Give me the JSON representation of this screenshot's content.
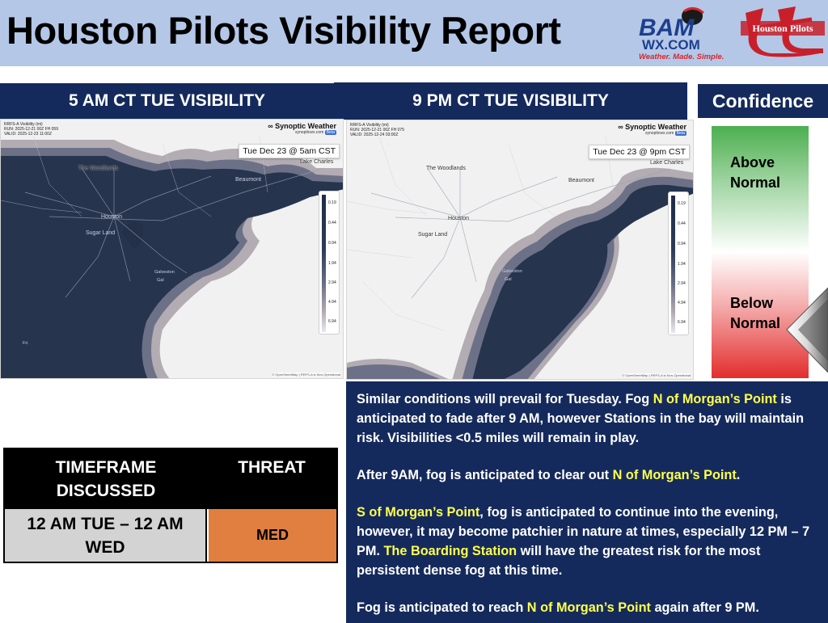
{
  "header": {
    "title": "Houston Pilots Visibility Report",
    "logo_baron": {
      "line1": "BAM",
      "line2": "WX.COM",
      "tagline": "Weather. Made. Simple."
    },
    "logo_hp": {
      "text": "Houston Pilots"
    }
  },
  "maps": {
    "left": {
      "heading": "5 AM CT TUE VISIBILITY",
      "meta": [
        "RRFS-A Visibility (mi)",
        "RUN: 2025-12-21 00Z FH 059",
        "VALID: 2025-12-23 11:00Z"
      ],
      "brand": "∞ Synoptic Weather",
      "brand_url": "synopticwx.com",
      "brand_badge": "Beta",
      "stamp": "Tue Dec 23 @ 5am CST",
      "places": [
        "The Woodlands",
        "Houston",
        "Sugar Land",
        "Beaumont",
        "Lake Charles",
        "Galveston",
        "Gal",
        "Fri"
      ],
      "attribution": "© OpenStreetMap | RRFS-A is Non-Operational"
    },
    "right": {
      "heading": "9 PM CT TUE VISIBILITY",
      "meta": [
        "RRFS-A Visibility (mi)",
        "RUN: 2025-12-21 00Z FH 075",
        "VALID: 2025-12-24 03:00Z"
      ],
      "brand": "∞ Synoptic Weather",
      "brand_url": "synopticwx.com",
      "brand_badge": "Beta",
      "stamp": "Tue Dec 23 @ 9pm CST",
      "places": [
        "The Woodlands",
        "Houston",
        "Sugar Land",
        "Beaumont",
        "Lake Charles",
        "Galveston",
        "Gal"
      ],
      "attribution": "© OpenStreetMap | RRFS-A is Non-Operational"
    },
    "legend_ticks": [
      "0.19",
      "0.44",
      "0.94",
      "1.94",
      "2.94",
      "4.94",
      "6.94"
    ]
  },
  "confidence": {
    "heading": "Confidence",
    "above": "Above Normal",
    "below": "Below Normal",
    "level": "below-normal"
  },
  "threat_table": {
    "col_timeframe": "TIMEFRAME DISCUSSED",
    "col_threat": "THREAT",
    "timeframe": "12 AM TUE – 12 AM WED",
    "threat": "MED",
    "threat_color": "#e07f3f"
  },
  "discussion": {
    "p1_a": "Similar conditions will prevail for Tuesday. Fog ",
    "p1_hl": "N of Morgan’s Point",
    "p1_b": " is anticipated to fade after 9 AM, however Stations in the bay will maintain risk. Visibilities <0.5 miles will remain in play.",
    "p2_a": "After 9AM, fog is anticipated to clear out ",
    "p2_hl": "N of Morgan’s Point",
    "p2_b": ".",
    "p3_hl1": "S of Morgan’s Point",
    "p3_a": ", fog is anticipated to continue into the evening, however, it may become patchier in nature at times, especially 12 PM – 7 PM. ",
    "p3_hl2": "The Boarding Station",
    "p3_b": " will have the greatest risk for the most persistent dense fog at this time.",
    "p4_a": "Fog is anticipated to reach ",
    "p4_hl": "N of Morgan’s Point",
    "p4_b": " again after 9 PM."
  },
  "colors": {
    "navy": "#152a5c",
    "header_bg": "#b4c7e7",
    "highlight": "#ffff4d",
    "fog": "#1e2d46"
  }
}
